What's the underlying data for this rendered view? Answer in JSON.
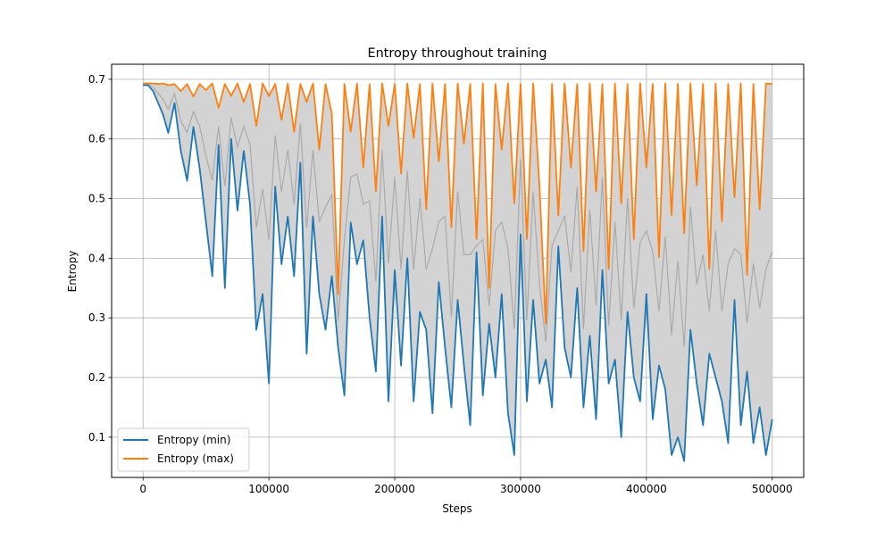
{
  "chart_data": {
    "type": "line",
    "title": "Entropy throughout training",
    "xlabel": "Steps",
    "ylabel": "Entropy",
    "xlim": [
      -25000,
      525000
    ],
    "ylim": [
      0.0325,
      0.7252
    ],
    "xticks": [
      0,
      100000,
      200000,
      300000,
      400000,
      500000
    ],
    "xtick_labels": [
      "0",
      "100000",
      "200000",
      "300000",
      "400000",
      "500000"
    ],
    "yticks": [
      0.1,
      0.2,
      0.3,
      0.4,
      0.5,
      0.6,
      0.7
    ],
    "ytick_labels": [
      "0.1",
      "0.2",
      "0.3",
      "0.4",
      "0.5",
      "0.6",
      "0.7"
    ],
    "grid": true,
    "legend_position": "lower-left",
    "colors": {
      "min": "#1f77b4",
      "max": "#ff7f0e",
      "band": "#d3d3d3",
      "mean": "#aaaaaa"
    },
    "series": [
      {
        "name": "Entropy (min)",
        "color": "#1f77b4",
        "x": [
          0,
          4000,
          8000,
          12000,
          16000,
          20000,
          25000,
          30000,
          35000,
          40000,
          45000,
          50000,
          55000,
          60000,
          65000,
          70000,
          75000,
          80000,
          85000,
          90000,
          95000,
          100000,
          105000,
          110000,
          115000,
          120000,
          125000,
          130000,
          135000,
          140000,
          145000,
          150000,
          155000,
          160000,
          165000,
          170000,
          175000,
          180000,
          185000,
          190000,
          195000,
          200000,
          205000,
          210000,
          215000,
          220000,
          225000,
          230000,
          235000,
          240000,
          245000,
          250000,
          255000,
          260000,
          265000,
          270000,
          275000,
          280000,
          285000,
          290000,
          295000,
          300000,
          305000,
          310000,
          315000,
          320000,
          325000,
          330000,
          335000,
          340000,
          345000,
          350000,
          355000,
          360000,
          365000,
          370000,
          375000,
          380000,
          385000,
          390000,
          395000,
          400000,
          405000,
          410000,
          415000,
          420000,
          425000,
          430000,
          435000,
          440000,
          445000,
          450000,
          455000,
          460000,
          465000,
          470000,
          475000,
          480000,
          485000,
          490000,
          495000,
          500000
        ],
        "y": [
          0.69,
          0.69,
          0.68,
          0.66,
          0.64,
          0.61,
          0.66,
          0.58,
          0.53,
          0.62,
          0.55,
          0.46,
          0.37,
          0.59,
          0.35,
          0.6,
          0.48,
          0.58,
          0.49,
          0.28,
          0.34,
          0.19,
          0.52,
          0.39,
          0.47,
          0.37,
          0.56,
          0.24,
          0.47,
          0.34,
          0.28,
          0.37,
          0.25,
          0.17,
          0.46,
          0.39,
          0.43,
          0.3,
          0.21,
          0.47,
          0.16,
          0.38,
          0.22,
          0.4,
          0.16,
          0.31,
          0.28,
          0.14,
          0.36,
          0.25,
          0.15,
          0.33,
          0.22,
          0.12,
          0.41,
          0.17,
          0.29,
          0.2,
          0.34,
          0.14,
          0.07,
          0.44,
          0.16,
          0.33,
          0.19,
          0.23,
          0.15,
          0.42,
          0.25,
          0.2,
          0.35,
          0.15,
          0.27,
          0.13,
          0.38,
          0.19,
          0.23,
          0.1,
          0.31,
          0.2,
          0.16,
          0.34,
          0.13,
          0.22,
          0.18,
          0.07,
          0.1,
          0.06,
          0.28,
          0.19,
          0.12,
          0.24,
          0.2,
          0.16,
          0.09,
          0.33,
          0.12,
          0.21,
          0.09,
          0.15,
          0.07,
          0.13
        ]
      },
      {
        "name": "Entropy (max)",
        "color": "#ff7f0e",
        "x": [
          0,
          4000,
          8000,
          12000,
          16000,
          20000,
          25000,
          30000,
          35000,
          40000,
          45000,
          50000,
          55000,
          60000,
          65000,
          70000,
          75000,
          80000,
          85000,
          90000,
          95000,
          100000,
          105000,
          110000,
          115000,
          120000,
          125000,
          130000,
          135000,
          140000,
          145000,
          150000,
          155000,
          160000,
          165000,
          170000,
          175000,
          180000,
          185000,
          190000,
          195000,
          200000,
          205000,
          210000,
          215000,
          220000,
          225000,
          230000,
          235000,
          240000,
          245000,
          250000,
          255000,
          260000,
          265000,
          270000,
          275000,
          280000,
          285000,
          290000,
          295000,
          300000,
          305000,
          310000,
          315000,
          320000,
          325000,
          330000,
          335000,
          340000,
          345000,
          350000,
          355000,
          360000,
          365000,
          370000,
          375000,
          380000,
          385000,
          390000,
          395000,
          400000,
          405000,
          410000,
          415000,
          420000,
          425000,
          430000,
          435000,
          440000,
          445000,
          450000,
          455000,
          460000,
          465000,
          470000,
          475000,
          480000,
          485000,
          490000,
          495000,
          500000
        ],
        "y": [
          0.693,
          0.693,
          0.693,
          0.692,
          0.693,
          0.69,
          0.692,
          0.68,
          0.692,
          0.671,
          0.692,
          0.682,
          0.693,
          0.652,
          0.692,
          0.672,
          0.693,
          0.662,
          0.692,
          0.622,
          0.693,
          0.672,
          0.692,
          0.632,
          0.693,
          0.612,
          0.692,
          0.662,
          0.693,
          0.582,
          0.692,
          0.642,
          0.34,
          0.692,
          0.612,
          0.693,
          0.552,
          0.692,
          0.512,
          0.693,
          0.622,
          0.692,
          0.542,
          0.693,
          0.602,
          0.692,
          0.482,
          0.693,
          0.562,
          0.692,
          0.452,
          0.693,
          0.592,
          0.692,
          0.432,
          0.693,
          0.35,
          0.692,
          0.582,
          0.693,
          0.492,
          0.692,
          0.432,
          0.693,
          0.522,
          0.29,
          0.692,
          0.472,
          0.693,
          0.552,
          0.692,
          0.412,
          0.693,
          0.512,
          0.692,
          0.382,
          0.693,
          0.492,
          0.692,
          0.432,
          0.693,
          0.552,
          0.692,
          0.402,
          0.693,
          0.472,
          0.692,
          0.442,
          0.693,
          0.522,
          0.692,
          0.382,
          0.693,
          0.462,
          0.692,
          0.502,
          0.693,
          0.372,
          0.692,
          0.482,
          0.693,
          0.692
        ]
      }
    ]
  }
}
